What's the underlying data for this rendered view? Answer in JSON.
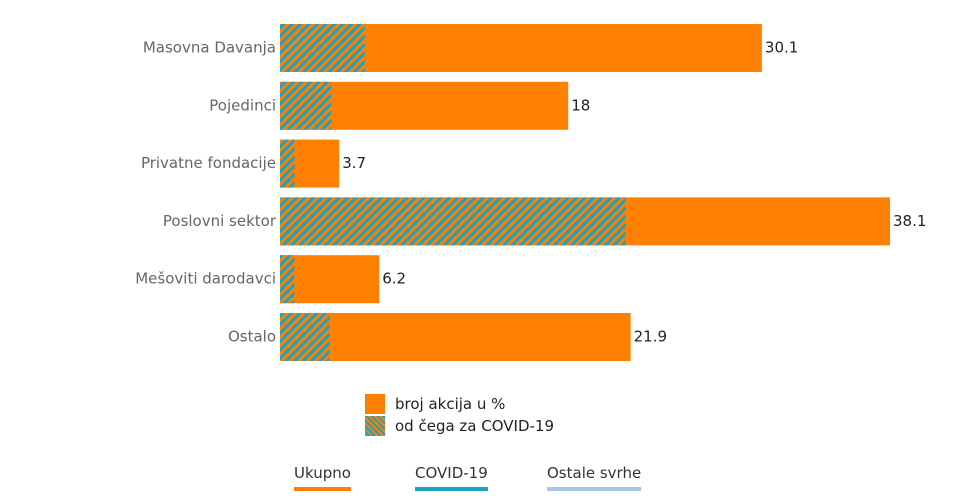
{
  "chart_data": {
    "type": "bar",
    "orientation": "horizontal",
    "categories": [
      "Masovna Davanja",
      "Pojedinci",
      "Privatne fondacije",
      "Poslovni sektor",
      "Mešoviti darodavci",
      "Ostalo"
    ],
    "series": [
      {
        "name": "broj akcija u %",
        "values": [
          30.1,
          18,
          3.7,
          38.1,
          6.2,
          21.9
        ],
        "color": "#ff7f00"
      },
      {
        "name": "od čega za COVID-19",
        "values": [
          5.3,
          3.2,
          0.9,
          21.6,
          0.9,
          3.1
        ],
        "pattern": "stripes",
        "colors": [
          "#ff7f00",
          "#1aa3c4"
        ]
      }
    ],
    "data_labels": [
      "30.1",
      "18",
      "3.7",
      "38.1",
      "6.2",
      "21.9"
    ],
    "xlim": [
      0,
      38.1
    ],
    "grid": false,
    "legend_position": "bottom"
  },
  "legend": {
    "items": [
      {
        "label": "broj akcija u %"
      },
      {
        "label": "od čega za COVID-19"
      }
    ]
  },
  "tabs": [
    {
      "label": "Ukupno",
      "color": "#ff7f00"
    },
    {
      "label": "COVID-19",
      "color": "#1aa3c4"
    },
    {
      "label": "Ostale svrhe",
      "color": "#a9c7e8"
    }
  ]
}
